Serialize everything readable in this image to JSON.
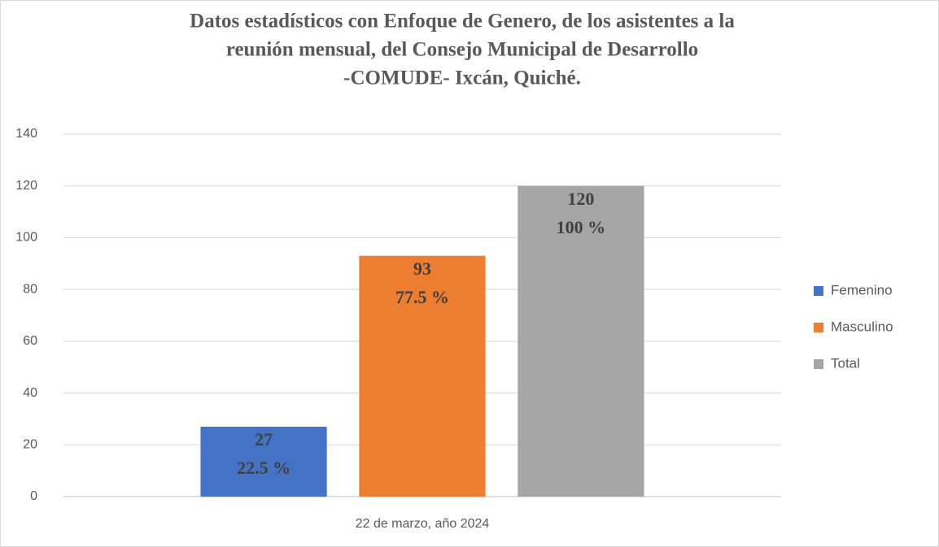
{
  "chart_data": {
    "type": "bar",
    "title": [
      "Datos estadísticos con Enfoque de Genero, de los asistentes a la",
      "reunión mensual, del Consejo Municipal de Desarrollo",
      "-COMUDE- Ixcán, Quiché."
    ],
    "categories": [
      "22 de marzo, año 2024"
    ],
    "series": [
      {
        "name": "Femenino",
        "color": "#4472c4",
        "values": [
          27
        ],
        "percent_labels": [
          "22.5 %"
        ]
      },
      {
        "name": "Masculino",
        "color": "#ed7d31",
        "values": [
          93
        ],
        "percent_labels": [
          "77.5 %"
        ]
      },
      {
        "name": "Total",
        "color": "#a5a5a5",
        "values": [
          120
        ],
        "percent_labels": [
          "100 %"
        ]
      }
    ],
    "ylim": [
      0,
      140
    ],
    "yticks": [
      0,
      20,
      40,
      60,
      80,
      100,
      120,
      140
    ],
    "grid": true,
    "legend": "right"
  }
}
